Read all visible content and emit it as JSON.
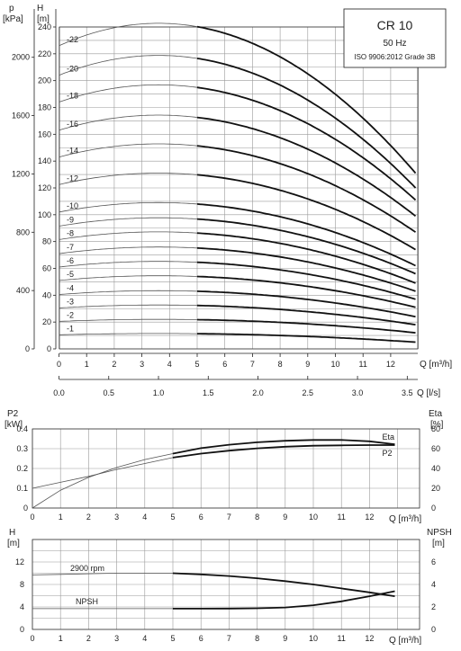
{
  "info_box": {
    "model": "CR 10",
    "frequency": "50 Hz",
    "standard": "ISO 9906:2012 Grade 3B"
  },
  "chart_data": [
    {
      "type": "line",
      "name": "head",
      "left_axis": {
        "label_top": "p",
        "label_unit": "[kPa]",
        "ticks": [
          0,
          400,
          800,
          1200,
          1600,
          2000
        ]
      },
      "y_axis": {
        "label_top": "H",
        "label_unit": "[m]",
        "ylim": [
          0,
          240
        ],
        "ticks": [
          0,
          20,
          40,
          60,
          80,
          100,
          120,
          140,
          160,
          180,
          200,
          220,
          240
        ]
      },
      "x_axis": {
        "label": "Q",
        "unit": "[m³/h]",
        "xlim": [
          0,
          13
        ],
        "ticks": [
          0,
          1,
          2,
          3,
          4,
          5,
          6,
          7,
          8,
          9,
          10,
          11,
          12
        ]
      },
      "x_axis_secondary": {
        "label": "Q",
        "unit": "[l/s]",
        "ticks": [
          "0.0",
          "0.5",
          "1.0",
          "1.5",
          "2.0",
          "2.5",
          "3.0",
          "3.5"
        ]
      },
      "grid": true,
      "curves": [
        {
          "label": "-1",
          "H0": 10.5,
          "H_end": 5
        },
        {
          "label": "-2",
          "H0": 20.5,
          "H_end": 12
        },
        {
          "label": "-3",
          "H0": 30.5,
          "H_end": 18
        },
        {
          "label": "-4",
          "H0": 40.5,
          "H_end": 24
        },
        {
          "label": "-5",
          "H0": 51,
          "H_end": 31
        },
        {
          "label": "-6",
          "H0": 61,
          "H_end": 37
        },
        {
          "label": "-7",
          "H0": 71,
          "H_end": 43
        },
        {
          "label": "-8",
          "H0": 81.5,
          "H_end": 49
        },
        {
          "label": "-9",
          "H0": 91.5,
          "H_end": 56
        },
        {
          "label": "-10",
          "H0": 102,
          "H_end": 62
        },
        {
          "label": "-12",
          "H0": 122.5,
          "H_end": 74
        },
        {
          "label": "-14",
          "H0": 143,
          "H_end": 87
        },
        {
          "label": "-16",
          "H0": 163,
          "H_end": 99
        },
        {
          "label": "-18",
          "H0": 184,
          "H_end": 111
        },
        {
          "label": "-20",
          "H0": 204,
          "H_end": 120
        },
        {
          "label": "-22",
          "H0": 226,
          "H_end": 131
        }
      ]
    },
    {
      "type": "line",
      "name": "power_efficiency",
      "left_axis": {
        "label_top": "P2",
        "label_unit": "[kW]",
        "ylim": [
          0,
          0.4
        ],
        "ticks": [
          0,
          0.1,
          0.2,
          0.3,
          0.4
        ]
      },
      "right_axis": {
        "label_top": "Eta",
        "label_unit": "[%]",
        "ylim": [
          0,
          80
        ],
        "ticks": [
          0,
          20,
          40,
          60,
          80
        ]
      },
      "x_axis": {
        "label": "Q",
        "unit": "[m³/h]",
        "xlim": [
          0,
          13
        ],
        "ticks": [
          0,
          1,
          2,
          3,
          4,
          5,
          6,
          7,
          8,
          9,
          10,
          11,
          12
        ]
      },
      "grid": true,
      "series": [
        {
          "name": "Eta",
          "axis": "right",
          "x": [
            0,
            1,
            2,
            3,
            4,
            5,
            6,
            7,
            8,
            9,
            10,
            11,
            12,
            12.9
          ],
          "y": [
            0,
            18,
            31,
            41,
            49,
            55,
            60.5,
            64,
            66.5,
            68,
            68.8,
            68.8,
            67.5,
            64.5
          ]
        },
        {
          "name": "P2",
          "axis": "left",
          "x": [
            0,
            1,
            2,
            3,
            4,
            5,
            6,
            7,
            8,
            9,
            10,
            11,
            12,
            12.9
          ],
          "y": [
            0.1,
            0.13,
            0.16,
            0.195,
            0.225,
            0.255,
            0.275,
            0.29,
            0.302,
            0.31,
            0.315,
            0.317,
            0.318,
            0.318
          ]
        }
      ]
    },
    {
      "type": "line",
      "name": "npsh",
      "left_axis": {
        "label_top": "H",
        "label_unit": "[m]",
        "ylim": [
          0,
          16
        ],
        "ticks": [
          0,
          4,
          8,
          12
        ]
      },
      "right_axis": {
        "label_top": "NPSH",
        "label_unit": "[m]",
        "ylim": [
          0,
          8
        ],
        "ticks": [
          0,
          2,
          4,
          6
        ]
      },
      "x_axis": {
        "label": "Q",
        "unit": "[m³/h]",
        "xlim": [
          0,
          13
        ],
        "ticks": [
          0,
          1,
          2,
          3,
          4,
          5,
          6,
          7,
          8,
          9,
          10,
          11,
          12
        ]
      },
      "grid": true,
      "series": [
        {
          "name": "2900 rpm",
          "axis": "left",
          "x": [
            0,
            1,
            2,
            3,
            4,
            5,
            6,
            7,
            8,
            9,
            10,
            11,
            12,
            12.9
          ],
          "y": [
            9.7,
            9.8,
            9.9,
            10.0,
            10.0,
            10.0,
            9.8,
            9.5,
            9.1,
            8.6,
            8.0,
            7.3,
            6.6,
            5.9
          ]
        },
        {
          "name": "NPSH",
          "axis": "right",
          "x": [
            0,
            1,
            2,
            3,
            4,
            5,
            6,
            7,
            8,
            9,
            10,
            11,
            12,
            12.9
          ],
          "y": [
            1.85,
            1.85,
            1.85,
            1.85,
            1.85,
            1.85,
            1.85,
            1.86,
            1.88,
            1.95,
            2.15,
            2.5,
            2.95,
            3.4
          ]
        }
      ]
    }
  ]
}
